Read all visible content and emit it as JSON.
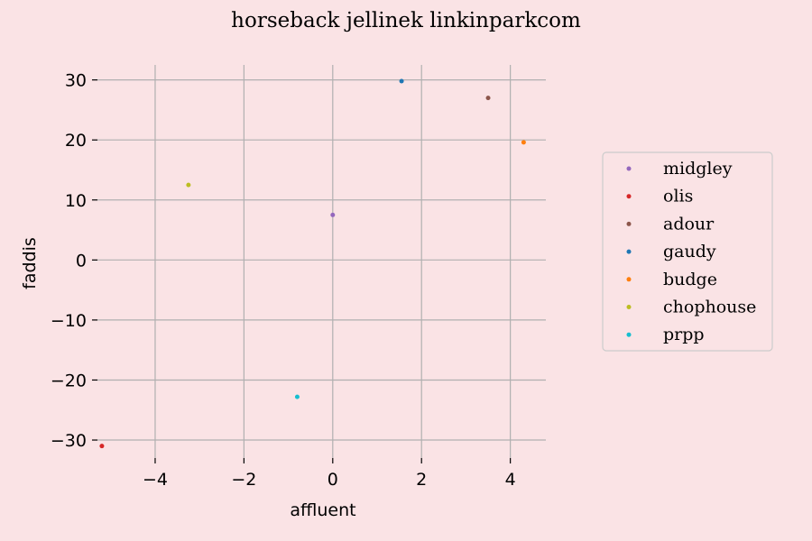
{
  "chart_data": {
    "type": "scatter",
    "title": "horseback jellinek linkinparkcom",
    "xlabel": "affluent",
    "ylabel": "faddis",
    "xlim": [
      -5.3,
      4.8
    ],
    "ylim": [
      -33,
      32.5
    ],
    "xticks": [
      -4,
      -2,
      0,
      2,
      4
    ],
    "yticks": [
      -30,
      -20,
      -10,
      0,
      10,
      20,
      30
    ],
    "xtick_labels": [
      "−4",
      "−2",
      "0",
      "2",
      "4"
    ],
    "ytick_labels": [
      "−30",
      "−20",
      "−10",
      "0",
      "10",
      "20",
      "30"
    ],
    "grid": true,
    "legend_position": "right",
    "series": [
      {
        "name": "midgley",
        "color": "#9467bd",
        "points": [
          [
            0.0,
            7.5
          ]
        ]
      },
      {
        "name": "olis",
        "color": "#d62728",
        "points": [
          [
            -5.2,
            -31.0
          ]
        ]
      },
      {
        "name": "adour",
        "color": "#8c564b",
        "points": [
          [
            3.5,
            27.0
          ]
        ]
      },
      {
        "name": "gaudy",
        "color": "#1f77b4",
        "points": [
          [
            1.55,
            29.8
          ]
        ]
      },
      {
        "name": "budge",
        "color": "#ff7f0e",
        "points": [
          [
            4.3,
            19.6
          ]
        ]
      },
      {
        "name": "chophouse",
        "color": "#bcbd22",
        "points": [
          [
            -3.25,
            12.5
          ]
        ]
      },
      {
        "name": "prpp",
        "color": "#17becf",
        "points": [
          [
            -0.8,
            -22.8
          ]
        ]
      }
    ]
  }
}
